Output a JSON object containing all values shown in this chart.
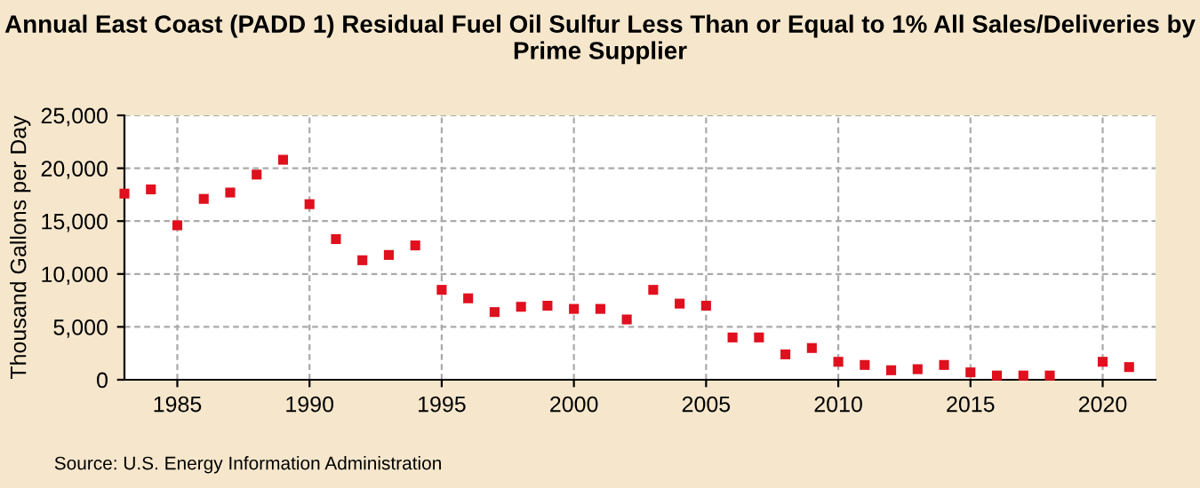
{
  "chart_data": {
    "type": "scatter",
    "title": "Annual East Coast (PADD 1) Residual Fuel Oil Sulfur Less Than or Equal to 1% All Sales/Deliveries by Prime Supplier",
    "ylabel": "Thousand Gallons per Day",
    "x": [
      1983,
      1984,
      1985,
      1986,
      1987,
      1988,
      1989,
      1990,
      1991,
      1992,
      1993,
      1994,
      1995,
      1996,
      1997,
      1998,
      1999,
      2000,
      2001,
      2002,
      2003,
      2004,
      2005,
      2006,
      2007,
      2008,
      2009,
      2010,
      2011,
      2012,
      2013,
      2014,
      2015,
      2016,
      2017,
      2018,
      2019,
      2020,
      2021
    ],
    "series": [
      {
        "color": "#e0101e",
        "values": [
          17600,
          18000,
          14600,
          17100,
          17700,
          19400,
          20800,
          16600,
          13300,
          11300,
          11800,
          12700,
          8500,
          7700,
          6400,
          6900,
          7000,
          6700,
          6700,
          5700,
          8500,
          7200,
          7000,
          4000,
          4000,
          2400,
          3000,
          1700,
          1400,
          900,
          1000,
          1400,
          700,
          400,
          400,
          400,
          null,
          1700,
          1200
        ]
      }
    ],
    "xlim": [
      1983,
      2022
    ],
    "xticks": [
      1985,
      1990,
      1995,
      2000,
      2005,
      2010,
      2015,
      2020
    ],
    "ylim": [
      0,
      25000
    ],
    "yticks": [
      {
        "value": 0,
        "label": "0"
      },
      {
        "value": 5000,
        "label": "5,000"
      },
      {
        "value": 10000,
        "label": "10,000"
      },
      {
        "value": 15000,
        "label": "15,000"
      },
      {
        "value": 20000,
        "label": "20,000"
      },
      {
        "value": 25000,
        "label": "25,000"
      }
    ],
    "grid": true,
    "marker": "square",
    "legend": false,
    "annotations": [
      "Source: U.S. Energy Information Administration"
    ]
  }
}
